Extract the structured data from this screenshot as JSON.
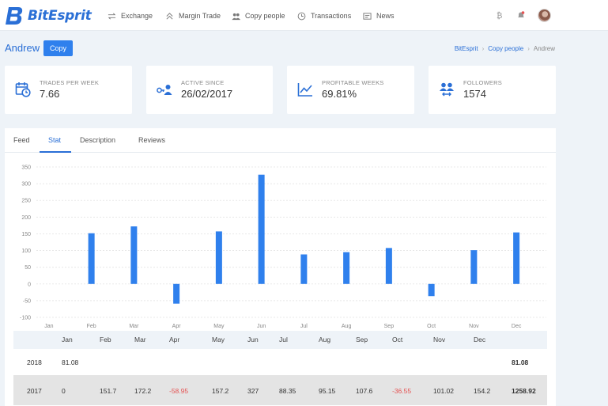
{
  "nav": {
    "brand": "BitEsprit",
    "items": [
      {
        "label": "Exchange",
        "icon": "exchange-icon"
      },
      {
        "label": "Margin Trade",
        "icon": "margin-trade-icon"
      },
      {
        "label": "Copy people",
        "icon": "copy-people-icon"
      },
      {
        "label": "Transactions",
        "icon": "transactions-icon"
      },
      {
        "label": "News",
        "icon": "news-icon"
      }
    ],
    "right_icons": [
      "bitcoin-icon",
      "notification-bell-icon",
      "avatar"
    ]
  },
  "header": {
    "user_name": "Andrew",
    "copy_label": "Copy",
    "breadcrumb": [
      "BitEsprit",
      "Copy people",
      "Andrew"
    ]
  },
  "stats": [
    {
      "label": "Trades per week",
      "value": "7.66",
      "icon": "calendar-clock-icon"
    },
    {
      "label": "Active since",
      "value": "26/02/2017",
      "icon": "user-key-icon"
    },
    {
      "label": "Profitable weeks",
      "value": "69.81%",
      "icon": "line-chart-icon"
    },
    {
      "label": "Followers",
      "value": "1574",
      "icon": "followers-icon"
    }
  ],
  "tabs": [
    {
      "label": "Feed",
      "active": false
    },
    {
      "label": "Stat",
      "active": true
    },
    {
      "label": "Description",
      "active": false
    },
    {
      "label": "Reviews",
      "active": false
    }
  ],
  "colors": {
    "accent": "#2f80ed",
    "negative": "#e55353"
  },
  "chart_data": {
    "type": "bar",
    "categories": [
      "Jan",
      "Feb",
      "Mar",
      "Apr",
      "May",
      "Jun",
      "Jul",
      "Aug",
      "Sep",
      "Oct",
      "Nov",
      "Dec"
    ],
    "values": [
      0,
      151.7,
      172.2,
      -58.95,
      157.2,
      327,
      88.35,
      95.15,
      107.6,
      -36.55,
      101.02,
      154.2
    ],
    "y_ticks": [
      350,
      300,
      250,
      200,
      150,
      100,
      50,
      0,
      -50,
      -100
    ],
    "ylim": [
      -100,
      350
    ],
    "grid": true,
    "color": "#2f80ed"
  },
  "table": {
    "headers": [
      "",
      "Jan",
      "Feb",
      "Mar",
      "Apr",
      "May",
      "Jun",
      "Jul",
      "Aug",
      "Sep",
      "Oct",
      "Nov",
      "Dec",
      ""
    ],
    "rows": [
      {
        "year": "2018",
        "values": [
          "81.08",
          "",
          "",
          "",
          "",
          "",
          "",
          "",
          "",
          "",
          "",
          ""
        ],
        "total": "81.08"
      },
      {
        "year": "2017",
        "values": [
          "0",
          "151.7",
          "172.2",
          "-58.95",
          "157.2",
          "327",
          "88.35",
          "95.15",
          "107.6",
          "-36.55",
          "101.02",
          "154.2"
        ],
        "total": "1258.92"
      }
    ]
  }
}
